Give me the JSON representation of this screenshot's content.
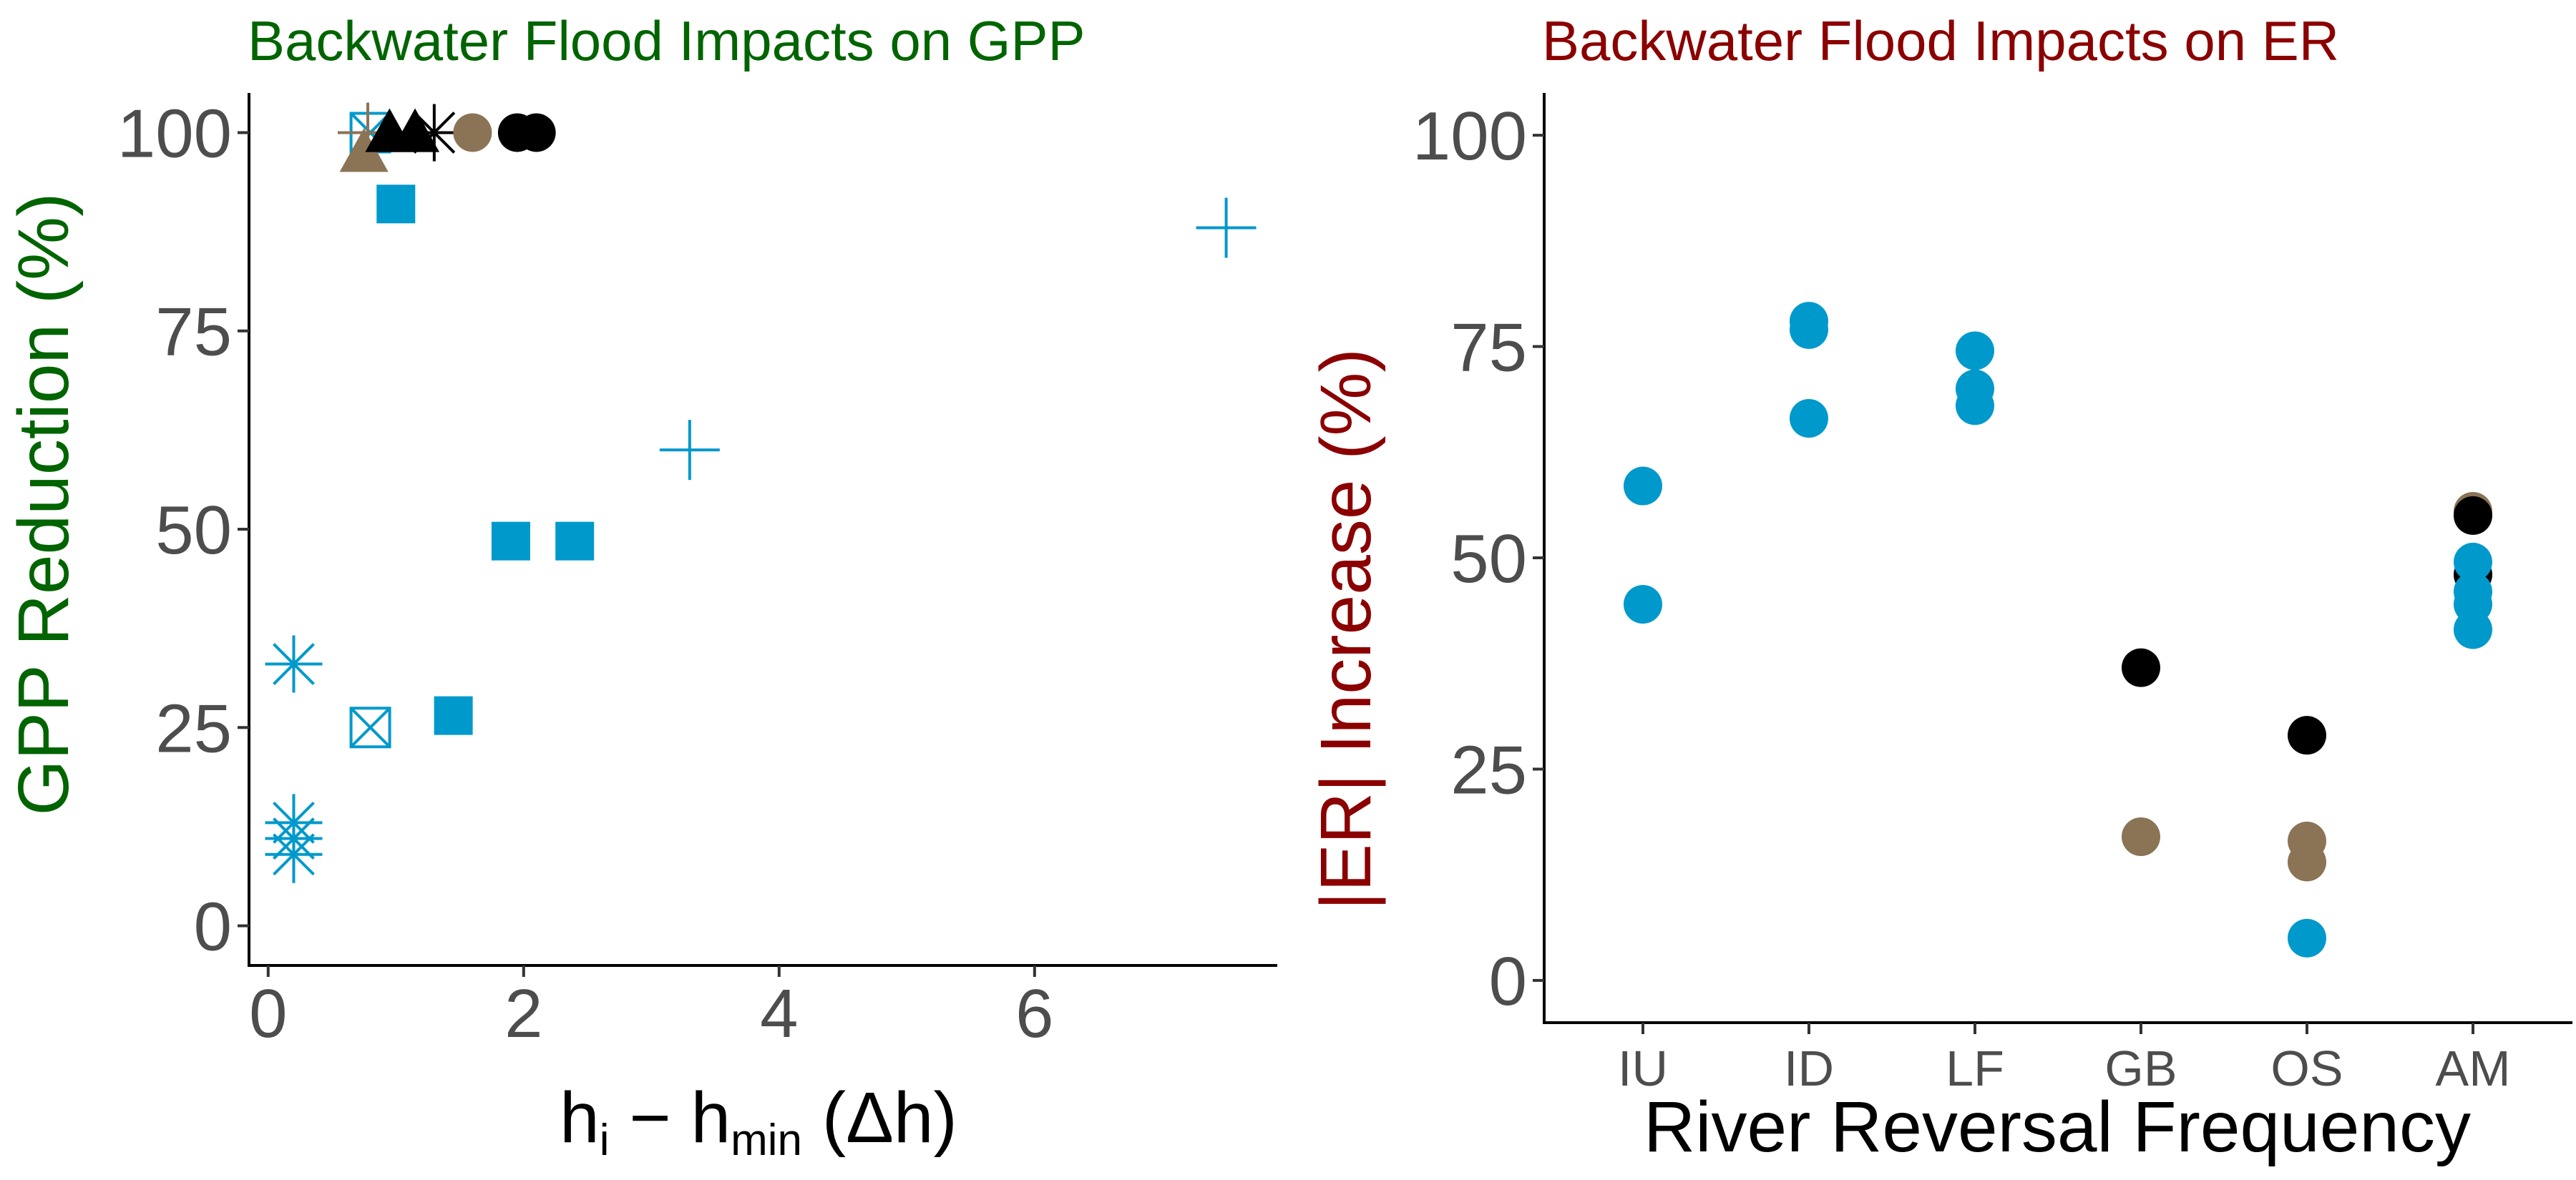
{
  "colors": {
    "blue": "#0099CC",
    "black": "#000000",
    "brown": "#8B7355",
    "green_title": "#006400",
    "red_title": "#8B0000",
    "axis": "#000000",
    "tick_text": "#4d4d4d"
  },
  "chart_data": [
    {
      "type": "scatter",
      "title": "Backwater Flood Impacts on GPP",
      "xlabel": {
        "base": "h",
        "sub": "i",
        "sep": " − ",
        "base2": "h",
        "sub2": "min",
        "suffix": " (Δh)"
      },
      "ylabel": "GPP Reduction (%)",
      "xlim": [
        -0.15,
        7.9
      ],
      "ylim": [
        -5,
        105
      ],
      "xticks": [
        0,
        2,
        4,
        6
      ],
      "xtick_labels": [
        "0",
        "2",
        "4",
        "6"
      ],
      "yticks": [
        0,
        25,
        50,
        75,
        100
      ],
      "ytick_labels": [
        "0",
        "25",
        "50",
        "75",
        "100"
      ],
      "grid": false,
      "legend": "none",
      "points": [
        {
          "x": 7.5,
          "y": 88,
          "shape": "plus",
          "color": "blue"
        },
        {
          "x": 3.3,
          "y": 60,
          "shape": "plus",
          "color": "blue"
        },
        {
          "x": 0.2,
          "y": 33,
          "shape": "asterisk",
          "color": "blue"
        },
        {
          "x": 0.2,
          "y": 13,
          "shape": "asterisk",
          "color": "blue"
        },
        {
          "x": 0.2,
          "y": 11,
          "shape": "asterisk",
          "color": "blue"
        },
        {
          "x": 0.2,
          "y": 9,
          "shape": "asterisk",
          "color": "blue"
        },
        {
          "x": 0.8,
          "y": 25,
          "shape": "boxx",
          "color": "blue"
        },
        {
          "x": 1.0,
          "y": 91,
          "shape": "square",
          "color": "blue"
        },
        {
          "x": 1.45,
          "y": 26.5,
          "shape": "square",
          "color": "blue"
        },
        {
          "x": 1.9,
          "y": 48.5,
          "shape": "square",
          "color": "blue"
        },
        {
          "x": 2.4,
          "y": 48.5,
          "shape": "square",
          "color": "blue"
        },
        {
          "x": 0.8,
          "y": 100,
          "shape": "boxx",
          "color": "blue"
        },
        {
          "x": 0.75,
          "y": 97.5,
          "shape": "triangle",
          "color": "brown"
        },
        {
          "x": 0.78,
          "y": 100,
          "shape": "plus",
          "color": "brown"
        },
        {
          "x": 0.95,
          "y": 100,
          "shape": "triangle",
          "color": "black"
        },
        {
          "x": 1.15,
          "y": 100,
          "shape": "triangle",
          "color": "black"
        },
        {
          "x": 1.3,
          "y": 100,
          "shape": "asterisk",
          "color": "black"
        },
        {
          "x": 1.6,
          "y": 100,
          "shape": "circle",
          "color": "brown"
        },
        {
          "x": 1.95,
          "y": 100,
          "shape": "circle",
          "color": "black"
        },
        {
          "x": 2.1,
          "y": 100,
          "shape": "circle",
          "color": "black"
        }
      ]
    },
    {
      "type": "scatter",
      "title": "Backwater Flood Impacts on ER",
      "xlabel": "River Reversal Frequency",
      "ylabel": "|ER| Increase (%)",
      "categories": [
        "IU",
        "ID",
        "LF",
        "GB",
        "OS",
        "AM"
      ],
      "ylim": [
        -5,
        105
      ],
      "yticks": [
        0,
        25,
        50,
        75,
        100
      ],
      "ytick_labels": [
        "0",
        "25",
        "50",
        "75",
        "100"
      ],
      "grid": false,
      "legend": "none",
      "points": [
        {
          "cat": "IU",
          "y": 58.5,
          "color": "blue"
        },
        {
          "cat": "IU",
          "y": 44.5,
          "color": "blue"
        },
        {
          "cat": "ID",
          "y": 78,
          "color": "blue"
        },
        {
          "cat": "ID",
          "y": 77,
          "color": "blue"
        },
        {
          "cat": "ID",
          "y": 66.5,
          "color": "blue"
        },
        {
          "cat": "LF",
          "y": 74.5,
          "color": "blue"
        },
        {
          "cat": "LF",
          "y": 70,
          "color": "blue"
        },
        {
          "cat": "LF",
          "y": 68,
          "color": "blue"
        },
        {
          "cat": "GB",
          "y": 37,
          "color": "black"
        },
        {
          "cat": "GB",
          "y": 17,
          "color": "brown"
        },
        {
          "cat": "OS",
          "y": 29,
          "color": "black"
        },
        {
          "cat": "OS",
          "y": 16.5,
          "color": "brown"
        },
        {
          "cat": "OS",
          "y": 14,
          "color": "brown"
        },
        {
          "cat": "OS",
          "y": 5,
          "color": "blue"
        },
        {
          "cat": "AM",
          "y": 55.5,
          "color": "brown"
        },
        {
          "cat": "AM",
          "y": 55,
          "color": "black"
        },
        {
          "cat": "AM",
          "y": 48,
          "color": "black"
        },
        {
          "cat": "AM",
          "y": 49.5,
          "color": "blue"
        },
        {
          "cat": "AM",
          "y": 46,
          "color": "blue"
        },
        {
          "cat": "AM",
          "y": 44.5,
          "color": "blue"
        },
        {
          "cat": "AM",
          "y": 41.5,
          "color": "blue"
        }
      ]
    }
  ]
}
